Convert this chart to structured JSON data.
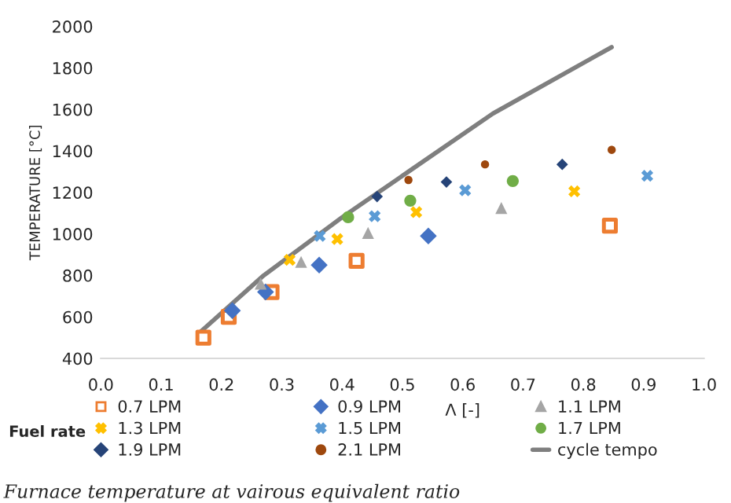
{
  "chart_data": {
    "type": "scatter",
    "ylabel": "TEMPERATURE [°C]",
    "xlabel": "Λ [-]",
    "legend_title": "Fuel rate",
    "legend": "bottom",
    "grid": false,
    "xlim": [
      0,
      1
    ],
    "xticks": [
      {
        "value": 0,
        "label": "0.0"
      },
      {
        "value": 0.1,
        "label": "0.1"
      },
      {
        "value": 0.2,
        "label": "0.2"
      },
      {
        "value": 0.3,
        "label": "0.3"
      },
      {
        "value": 0.4,
        "label": "0.4"
      },
      {
        "value": 0.5,
        "label": "0.5"
      },
      {
        "value": 0.6,
        "label": "0.6"
      },
      {
        "value": 0.7,
        "label": "0.7"
      },
      {
        "value": 0.8,
        "label": "0.8"
      },
      {
        "value": 0.9,
        "label": "0.9"
      },
      {
        "value": 1,
        "label": "1.0"
      }
    ],
    "ylim": [
      400,
      2000
    ],
    "yticks": [
      400,
      600,
      800,
      1000,
      1200,
      1400,
      1600,
      1800,
      2000
    ],
    "series": [
      {
        "name": "0.7 LPM",
        "color": "#ed7d31",
        "marker": "square",
        "x": [
          0.17,
          0.212,
          0.283,
          0.424,
          0.844
        ],
        "values": [
          500,
          600,
          720,
          870,
          1040
        ]
      },
      {
        "name": "0.9 LPM",
        "color": "#4472c4",
        "marker": "diamond",
        "x": [
          0.218,
          0.273,
          0.362,
          0.543
        ],
        "values": [
          630,
          720,
          850,
          990
        ]
      },
      {
        "name": "1.1 LPM",
        "color": "#a5a5a5",
        "marker": "triangle",
        "x": [
          0.265,
          0.332,
          0.443,
          0.664
        ],
        "values": [
          760,
          865,
          1005,
          1125
        ]
      },
      {
        "name": "1.3 LPM",
        "color": "#ffc000",
        "marker": "cross",
        "x": [
          0.313,
          0.392,
          0.523,
          0.785
        ],
        "values": [
          875,
          975,
          1105,
          1205
        ]
      },
      {
        "name": "1.5 LPM",
        "color": "#5b9bd5",
        "marker": "cross",
        "x": [
          0.363,
          0.454,
          0.604,
          0.906
        ],
        "values": [
          990,
          1085,
          1210,
          1280
        ]
      },
      {
        "name": "1.7 LPM",
        "color": "#70ad47",
        "marker": "circle",
        "x": [
          0.41,
          0.513,
          0.683
        ],
        "values": [
          1080,
          1160,
          1255
        ]
      },
      {
        "name": "1.9 LPM",
        "color": "#264478",
        "marker": "diamond",
        "x": [
          0.458,
          0.573,
          0.765
        ],
        "values": [
          1180,
          1250,
          1335
        ]
      },
      {
        "name": "2.1 LPM",
        "color": "#9e480e",
        "marker": "circle",
        "x": [
          0.51,
          0.637,
          0.847
        ],
        "values": [
          1260,
          1335,
          1405
        ]
      },
      {
        "name": "cycle tempo",
        "type": "line",
        "color": "#7f7f7f",
        "marker": "none",
        "x": [
          0.166,
          0.27,
          0.4,
          0.51,
          0.65,
          0.847
        ],
        "values": [
          530,
          800,
          1080,
          1300,
          1580,
          1900
        ]
      }
    ],
    "annotations": [
      "Furnace temperature at vairous equivalent ratio"
    ]
  }
}
